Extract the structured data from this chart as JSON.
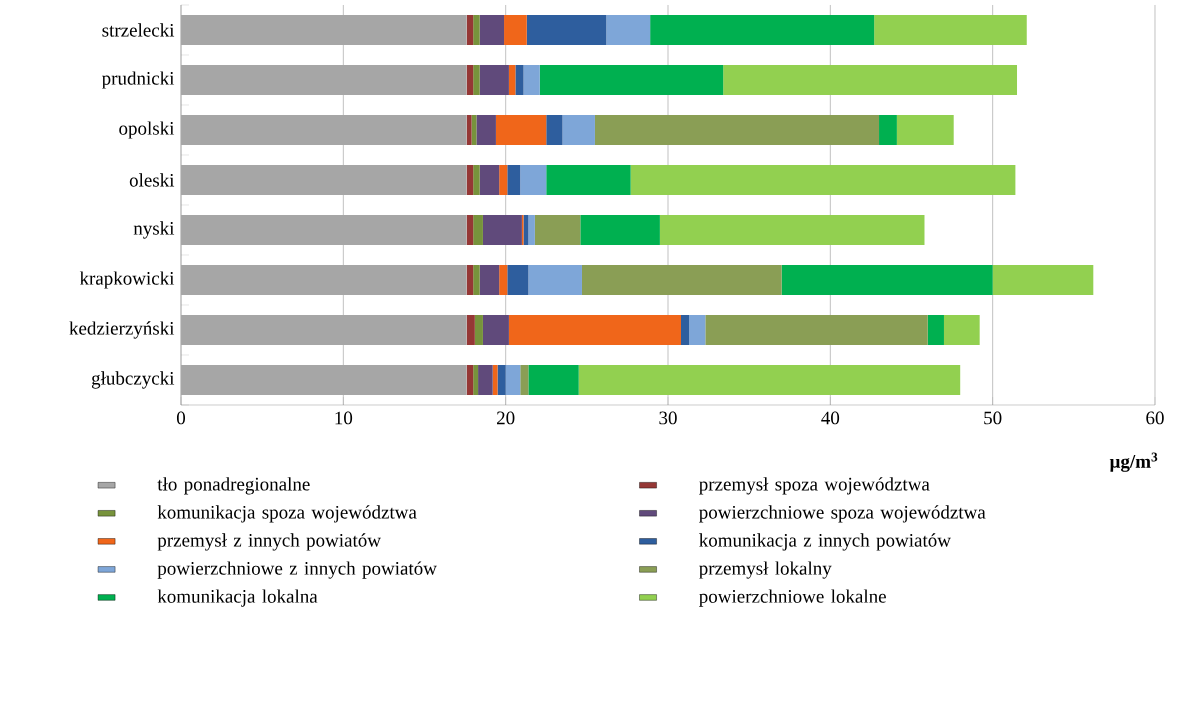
{
  "chart_data": {
    "type": "bar",
    "orientation": "horizontal",
    "stacked": true,
    "xlabel": "µg/m$^{3}$",
    "categories": [
      "strzelecki",
      "prudnicki",
      "opolski",
      "oleski",
      "nyski",
      "krapkowicki",
      "kedzierzyński",
      "głubczycki"
    ],
    "series": [
      {
        "name": "tło ponadregionalne",
        "color": "#a6a6a6",
        "values": [
          17.6,
          17.6,
          17.6,
          17.6,
          17.6,
          17.6,
          17.6,
          17.6
        ]
      },
      {
        "name": "przemysł spoza województwa",
        "color": "#953735",
        "values": [
          0.4,
          0.4,
          0.3,
          0.4,
          0.4,
          0.4,
          0.5,
          0.4
        ]
      },
      {
        "name": "komunikacja spoza województwa",
        "color": "#77933c",
        "values": [
          0.4,
          0.4,
          0.3,
          0.4,
          0.6,
          0.4,
          0.5,
          0.3
        ]
      },
      {
        "name": "powierzchniowe spoza województwa",
        "color": "#604a7b",
        "values": [
          1.5,
          1.8,
          1.2,
          1.2,
          2.4,
          1.2,
          1.6,
          0.9
        ]
      },
      {
        "name": "przemysł z innych powiatów",
        "color": "#f0661a",
        "values": [
          1.4,
          0.4,
          3.1,
          0.5,
          0.1,
          0.5,
          10.6,
          0.3
        ]
      },
      {
        "name": "komunikacja z innych powiatów",
        "color": "#2e5e9e",
        "values": [
          4.9,
          0.5,
          1.0,
          0.8,
          0.3,
          1.3,
          0.5,
          0.5
        ]
      },
      {
        "name": "powierzchniowe z innych powiatów",
        "color": "#7ea6d8",
        "values": [
          2.7,
          1.0,
          2.0,
          1.6,
          0.4,
          3.3,
          1.0,
          0.9
        ]
      },
      {
        "name": "przemysł lokalny",
        "color": "#8a9e55",
        "values": [
          0,
          0,
          17.5,
          0,
          2.8,
          12.3,
          13.7,
          0.5
        ]
      },
      {
        "name": "komunikacja lokalna",
        "color": "#00b050",
        "values": [
          13.8,
          11.3,
          1.1,
          5.2,
          4.9,
          13.0,
          1.0,
          3.1
        ]
      },
      {
        "name": "powierzchniowe lokalne",
        "color": "#92d050",
        "values": [
          9.4,
          18.1,
          3.5,
          23.7,
          16.3,
          6.2,
          2.2,
          23.5
        ]
      }
    ],
    "xlim": [
      0,
      60
    ],
    "xticks": [
      0,
      10,
      20,
      30,
      40,
      50,
      60
    ],
    "grid": "x",
    "legend": "bottom"
  }
}
